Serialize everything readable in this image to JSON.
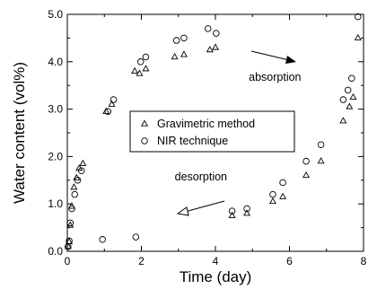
{
  "chart_data": {
    "type": "scatter",
    "title": "",
    "xlabel": "Time (day)",
    "ylabel": "Water content (vol%)",
    "xlim": [
      0,
      8
    ],
    "ylim": [
      0,
      5
    ],
    "x_ticks": [
      0,
      2,
      4,
      6,
      8
    ],
    "y_ticks": [
      0.0,
      1.0,
      2.0,
      3.0,
      4.0,
      5.0
    ],
    "x_tick_labels": [
      "0",
      "2",
      "4",
      "6",
      "8"
    ],
    "y_tick_labels": [
      "0.0",
      "1.0",
      "2.0",
      "3.0",
      "4.0",
      "5.0"
    ],
    "grid": false,
    "legend_position": "center",
    "series": [
      {
        "name": "Gravimetric method",
        "marker": "triangle",
        "x": [
          0.02,
          0.05,
          0.08,
          0.12,
          0.18,
          0.25,
          0.32,
          0.42,
          1.05,
          1.2,
          1.82,
          1.95,
          2.12,
          2.9,
          3.15,
          3.85,
          4.0,
          4.45,
          4.85,
          5.55,
          5.82,
          6.45,
          6.85,
          7.45,
          7.62,
          7.72,
          7.85
        ],
        "y": [
          0.1,
          0.2,
          0.55,
          0.95,
          1.35,
          1.55,
          1.75,
          1.85,
          2.95,
          3.1,
          3.8,
          3.75,
          3.85,
          4.1,
          4.15,
          4.25,
          4.3,
          0.75,
          0.8,
          1.05,
          1.15,
          1.6,
          1.9,
          2.75,
          3.05,
          3.25,
          4.5
        ]
      },
      {
        "name": "NIR technique",
        "marker": "circle",
        "x": [
          0.02,
          0.05,
          0.08,
          0.12,
          0.2,
          0.28,
          0.38,
          0.95,
          1.1,
          1.25,
          1.85,
          1.98,
          2.12,
          2.95,
          3.15,
          3.8,
          4.02,
          4.45,
          4.85,
          5.55,
          5.82,
          6.45,
          6.85,
          7.45,
          7.58,
          7.68,
          7.85
        ],
        "y": [
          0.1,
          0.22,
          0.6,
          0.9,
          1.2,
          1.5,
          1.7,
          0.25,
          2.95,
          3.2,
          0.3,
          4.0,
          4.1,
          4.45,
          4.5,
          4.7,
          4.6,
          0.85,
          0.9,
          1.2,
          1.45,
          1.9,
          2.25,
          3.2,
          3.4,
          3.65,
          4.95
        ]
      }
    ],
    "annotations": [
      {
        "text": "absorption",
        "x": 4.9,
        "y": 3.6
      },
      {
        "text": "desorption",
        "x": 2.9,
        "y": 1.5
      }
    ]
  }
}
